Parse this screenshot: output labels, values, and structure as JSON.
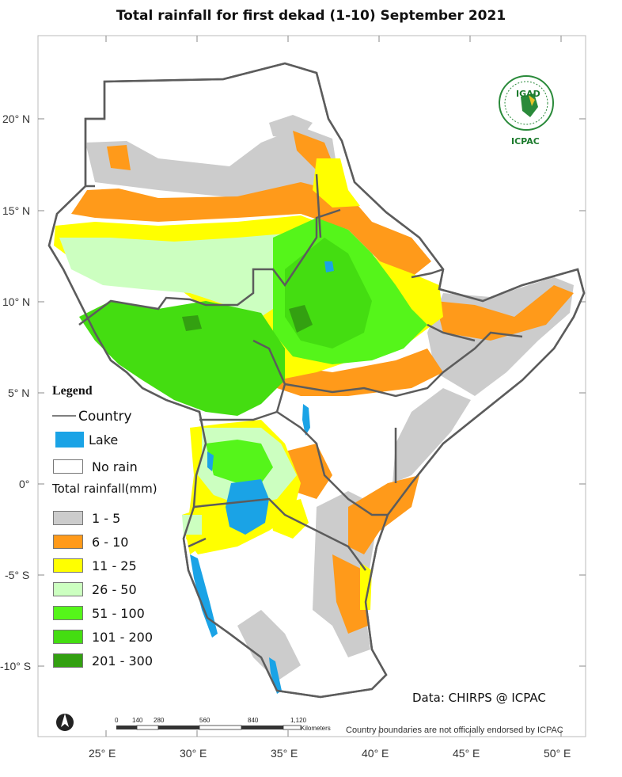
{
  "title": "Total rainfall for  first dekad (1-10) September  2021",
  "latitude_labels": [
    "20° N",
    "15° N",
    "10° N",
    "5° N",
    "0°",
    "-5° S",
    "-10° S"
  ],
  "longitude_labels": [
    "25° E",
    "30° E",
    "35° E",
    "40° E",
    "45° E",
    "50° E"
  ],
  "legend": {
    "title": "Legend",
    "country": "Country",
    "lake": "Lake",
    "no_rain": "No rain",
    "total_rainfall_title": "Total rainfall(mm)",
    "classes": [
      {
        "label": "1 - 5",
        "color": "#cccccc"
      },
      {
        "label": "6 - 10",
        "color": "#ff9a1a"
      },
      {
        "label": "11 - 25",
        "color": "#ffff00"
      },
      {
        "label": "26 - 50",
        "color": "#ccffc0"
      },
      {
        "label": "51 - 100",
        "color": "#55f51a"
      },
      {
        "label": "101 - 200",
        "color": "#44dd11"
      },
      {
        "label": "201 - 300",
        "color": "#33a011"
      }
    ],
    "lake_color": "#1aa3e6",
    "no_rain_color": "#ffffff"
  },
  "scale_bar": {
    "ticks": [
      "0",
      "140",
      "280",
      "560",
      "840",
      "1,120"
    ],
    "unit": "Kilometers"
  },
  "logo": {
    "top_text": "IGAD",
    "bottom_text": "ICPAC"
  },
  "credit": "Data: CHIRPS @ ICPAC",
  "disclaimer": "Country boundaries are not officially endorsed by ICPAC",
  "north_arrow": "north-arrow-icon"
}
